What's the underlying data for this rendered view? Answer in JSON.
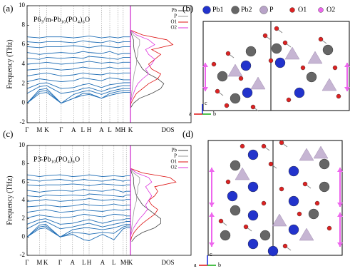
{
  "chart_data": [
    {
      "type": "phonon",
      "panel_label": "(a)",
      "annotation": "P6₃/m-Pb₁₀(PO₄)₆O",
      "ylabel": "Frequency (THz)",
      "ylim": [
        -2,
        10
      ],
      "yticks": [
        -2,
        0,
        2,
        4,
        6,
        8,
        10
      ],
      "xlim": [
        0,
        1
      ],
      "xticks": [
        {
          "value": 0,
          "label": "Γ"
        },
        {
          "value": 0.12,
          "label": "M"
        },
        {
          "value": 0.19,
          "label": "K"
        },
        {
          "value": 0.33,
          "label": "Γ"
        },
        {
          "value": 0.45,
          "label": "A"
        },
        {
          "value": 0.54,
          "label": "L"
        },
        {
          "value": 0.6,
          "label": "H"
        },
        {
          "value": 0.72,
          "label": "A"
        },
        {
          "value": 0.8,
          "label": "L"
        },
        {
          "value": 0.88,
          "label": "M"
        },
        {
          "value": 0.93,
          "label": "H"
        },
        {
          "value": 1,
          "label": "K"
        }
      ],
      "band_color": "#1f6db5",
      "bands": [
        [
          0,
          1.0,
          1.1,
          0,
          0.5,
          0.8,
          0.9,
          0.5,
          0.8,
          1.0,
          1.1,
          1.1
        ],
        [
          0,
          1.2,
          1.3,
          0,
          0.5,
          1.0,
          1.0,
          0.5,
          1.0,
          1.2,
          1.3,
          1.3
        ],
        [
          0,
          1.4,
          1.5,
          0,
          0.9,
          1.2,
          1.3,
          0.9,
          1.2,
          1.4,
          1.5,
          1.5
        ],
        [
          1.0,
          1.7,
          1.8,
          1.0,
          1.2,
          1.5,
          1.6,
          1.2,
          1.5,
          1.7,
          1.8,
          1.8
        ],
        [
          1.5,
          2.0,
          2.1,
          1.5,
          1.6,
          1.9,
          2.0,
          1.6,
          1.9,
          2.0,
          2.1,
          2.1
        ],
        [
          2.2,
          2.5,
          2.4,
          2.2,
          2.3,
          2.6,
          2.5,
          2.3,
          2.6,
          2.5,
          2.4,
          2.4
        ],
        [
          2.8,
          3.0,
          3.1,
          2.8,
          2.9,
          3.1,
          3.0,
          2.9,
          3.1,
          3.0,
          3.1,
          3.1
        ],
        [
          3.4,
          3.5,
          3.6,
          3.4,
          3.5,
          3.7,
          3.6,
          3.5,
          3.7,
          3.5,
          3.6,
          3.6
        ],
        [
          4.0,
          4.1,
          4.2,
          4.0,
          4.1,
          4.2,
          4.3,
          4.1,
          4.2,
          4.1,
          4.2,
          4.2
        ],
        [
          4.6,
          4.5,
          4.7,
          4.6,
          4.7,
          4.6,
          4.8,
          4.7,
          4.6,
          4.5,
          4.7,
          4.7
        ],
        [
          5.2,
          5.0,
          5.1,
          5.2,
          5.1,
          5.3,
          5.2,
          5.1,
          5.3,
          5.0,
          5.1,
          5.1
        ],
        [
          5.8,
          5.7,
          5.8,
          5.8,
          5.9,
          5.8,
          5.7,
          5.9,
          5.8,
          5.7,
          5.8,
          5.8
        ],
        [
          6.3,
          6.2,
          6.3,
          6.3,
          6.2,
          6.4,
          6.3,
          6.2,
          6.4,
          6.2,
          6.3,
          6.3
        ],
        [
          6.8,
          6.7,
          6.8,
          6.8,
          6.7,
          6.8,
          6.9,
          6.7,
          6.8,
          6.7,
          6.8,
          6.8
        ]
      ],
      "dos": {
        "label": "DOS",
        "xlim": [
          0,
          1
        ],
        "frequencies": [
          -0.5,
          0,
          0.5,
          1,
          1.5,
          2,
          2.5,
          3,
          3.5,
          4,
          4.5,
          5,
          5.5,
          6,
          6.5,
          7,
          7.5
        ],
        "series": [
          {
            "name": "Pb",
            "color": "#444444",
            "values": [
              0,
              0.05,
              0.15,
              0.35,
              0.5,
              0.55,
              0.45,
              0.3,
              0.2,
              0.15,
              0.1,
              0.08,
              0.06,
              0.05,
              0.05,
              0.02,
              0
            ]
          },
          {
            "name": "P",
            "color": "#999999",
            "values": [
              0,
              0,
              0.01,
              0.02,
              0.03,
              0.04,
              0.05,
              0.06,
              0.08,
              0.1,
              0.1,
              0.12,
              0.12,
              0.15,
              0.15,
              0.05,
              0
            ]
          },
          {
            "name": "O1",
            "color": "#dd1111",
            "values": [
              0,
              0.01,
              0.05,
              0.1,
              0.2,
              0.3,
              0.45,
              0.5,
              0.35,
              0.3,
              0.4,
              0.5,
              0.35,
              0.7,
              0.6,
              0.2,
              0
            ]
          },
          {
            "name": "O2",
            "color": "#dd33dd",
            "values": [
              0,
              0,
              0.02,
              0.05,
              0.08,
              0.12,
              0.2,
              0.3,
              0.25,
              0.35,
              0.4,
              0.3,
              0.25,
              0.4,
              0.3,
              0.1,
              0
            ]
          }
        ]
      }
    },
    {
      "type": "phonon",
      "panel_label": "(c)",
      "annotation": "P3̄-Pb₁₀(PO₄)₆O",
      "ylabel": "Frequency (THz)",
      "ylim": [
        -2,
        10
      ],
      "yticks": [
        -2,
        0,
        2,
        4,
        6,
        8,
        10
      ],
      "xlim": [
        0,
        1
      ],
      "xticks": [
        {
          "value": 0,
          "label": "Γ"
        },
        {
          "value": 0.12,
          "label": "M"
        },
        {
          "value": 0.18,
          "label": "K"
        },
        {
          "value": 0.32,
          "label": "Γ"
        },
        {
          "value": 0.44,
          "label": "A"
        },
        {
          "value": 0.55,
          "label": "L"
        },
        {
          "value": 0.6,
          "label": "H"
        },
        {
          "value": 0.73,
          "label": "A"
        },
        {
          "value": 0.84,
          "label": "L"
        },
        {
          "value": 0.93,
          "label": "M"
        },
        {
          "value": 0.96,
          "label": "H"
        },
        {
          "value": 1,
          "label": "K"
        }
      ],
      "band_color": "#1f6db5",
      "bands": [
        [
          0,
          0.9,
          1.0,
          0,
          0.3,
          -0.3,
          -0.4,
          0.3,
          -0.3,
          0.9,
          1.0,
          1.0
        ],
        [
          0,
          1.1,
          1.2,
          0,
          0.5,
          0.4,
          0.3,
          0.5,
          0.4,
          1.1,
          1.2,
          1.2
        ],
        [
          0,
          1.3,
          1.4,
          0,
          0.8,
          1.0,
          1.0,
          0.8,
          1.0,
          1.3,
          1.4,
          1.4
        ],
        [
          0.9,
          1.6,
          1.7,
          0.9,
          1.1,
          1.4,
          1.5,
          1.1,
          1.4,
          1.6,
          1.7,
          1.7
        ],
        [
          1.4,
          1.9,
          2.0,
          1.4,
          1.5,
          1.8,
          1.9,
          1.5,
          1.8,
          1.9,
          2.0,
          2.0
        ],
        [
          2.1,
          2.4,
          2.3,
          2.1,
          2.2,
          2.5,
          2.4,
          2.2,
          2.5,
          2.4,
          2.3,
          2.3
        ],
        [
          2.7,
          2.9,
          3.0,
          2.7,
          2.8,
          3.0,
          2.9,
          2.8,
          3.0,
          2.9,
          3.0,
          3.0
        ],
        [
          3.3,
          3.4,
          3.5,
          3.3,
          3.4,
          3.6,
          3.5,
          3.4,
          3.6,
          3.4,
          3.5,
          3.5
        ],
        [
          3.9,
          4.0,
          4.1,
          3.9,
          4.0,
          4.1,
          4.2,
          4.0,
          4.1,
          4.0,
          4.1,
          4.1
        ],
        [
          4.5,
          4.4,
          4.6,
          4.5,
          4.6,
          4.5,
          4.7,
          4.6,
          4.5,
          4.4,
          4.6,
          4.6
        ],
        [
          5.1,
          4.9,
          5.0,
          5.1,
          5.0,
          5.2,
          5.1,
          5.0,
          5.2,
          4.9,
          5.0,
          5.0
        ],
        [
          5.7,
          5.6,
          5.7,
          5.7,
          5.8,
          5.7,
          5.6,
          5.8,
          5.7,
          5.6,
          5.7,
          5.7
        ],
        [
          6.3,
          6.1,
          6.2,
          6.3,
          6.1,
          6.3,
          6.2,
          6.1,
          6.3,
          6.1,
          6.2,
          6.2
        ],
        [
          6.8,
          6.6,
          6.7,
          6.8,
          6.6,
          6.7,
          6.8,
          6.6,
          6.7,
          6.6,
          6.7,
          6.7
        ]
      ],
      "dos": {
        "label": "DOS",
        "xlim": [
          0,
          1
        ],
        "frequencies": [
          -0.5,
          0,
          0.5,
          1,
          1.5,
          2,
          2.5,
          3,
          3.5,
          4,
          4.5,
          5,
          5.5,
          6,
          6.5,
          7,
          7.5
        ],
        "series": [
          {
            "name": "Pb",
            "color": "#444444",
            "values": [
              0.02,
              0.08,
              0.2,
              0.4,
              0.5,
              0.5,
              0.4,
              0.3,
              0.2,
              0.15,
              0.1,
              0.08,
              0.06,
              0.05,
              0.05,
              0.02,
              0
            ]
          },
          {
            "name": "P",
            "color": "#999999",
            "values": [
              0,
              0,
              0.01,
              0.02,
              0.03,
              0.04,
              0.05,
              0.06,
              0.08,
              0.1,
              0.1,
              0.12,
              0.12,
              0.15,
              0.15,
              0.05,
              0
            ]
          },
          {
            "name": "O1",
            "color": "#dd1111",
            "values": [
              0,
              0.02,
              0.06,
              0.12,
              0.2,
              0.3,
              0.4,
              0.45,
              0.35,
              0.3,
              0.4,
              0.45,
              0.4,
              0.75,
              0.65,
              0.2,
              0
            ]
          },
          {
            "name": "O2",
            "color": "#dd33dd",
            "values": [
              0,
              0,
              0.02,
              0.05,
              0.1,
              0.15,
              0.22,
              0.28,
              0.25,
              0.3,
              0.35,
              0.3,
              0.25,
              0.35,
              0.3,
              0.1,
              0
            ]
          }
        ]
      }
    }
  ],
  "structures": [
    {
      "panel_label": "(b)",
      "axes": [
        "a",
        "b",
        "c"
      ],
      "legend": [
        {
          "name": "Pb1",
          "color": "#2233cc"
        },
        {
          "name": "Pb2",
          "color": "#666666"
        },
        {
          "name": "P",
          "color": "#b8a3c8"
        },
        {
          "name": "O1",
          "color": "#dd2222"
        },
        {
          "name": "O2",
          "color": "#ee66ee"
        }
      ]
    },
    {
      "panel_label": "(d)",
      "axes": [
        "a",
        "b",
        "c"
      ]
    }
  ]
}
